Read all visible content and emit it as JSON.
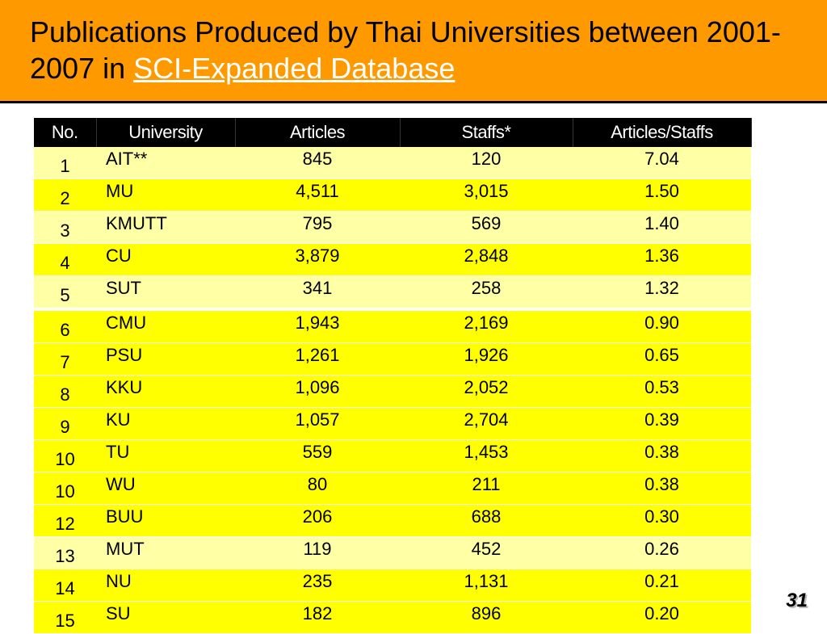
{
  "slide": {
    "title_main": "Publications Produced by Thai Universities between 2001-2007 in ",
    "title_link": "SCI-Expanded Database",
    "page_number": "31"
  },
  "table": {
    "headers": [
      "No.",
      "University",
      "Articles",
      "Staffs*",
      "Articles/Staffs"
    ],
    "rows": [
      {
        "no": "1",
        "university": "AIT**",
        "articles": "845",
        "staffs": "120",
        "ratio": "7.04"
      },
      {
        "no": "2",
        "university": "MU",
        "articles": "4,511",
        "staffs": "3,015",
        "ratio": "1.50"
      },
      {
        "no": "3",
        "university": "KMUTT",
        "articles": "795",
        "staffs": "569",
        "ratio": "1.40"
      },
      {
        "no": "4",
        "university": "CU",
        "articles": "3,879",
        "staffs": "2,848",
        "ratio": "1.36"
      },
      {
        "no": "5",
        "university": "SUT",
        "articles": "341",
        "staffs": "258",
        "ratio": "1.32"
      },
      {
        "no": "6",
        "university": "CMU",
        "articles": "1,943",
        "staffs": "2,169",
        "ratio": "0.90"
      },
      {
        "no": "7",
        "university": "PSU",
        "articles": "1,261",
        "staffs": "1,926",
        "ratio": "0.65"
      },
      {
        "no": "8",
        "university": "KKU",
        "articles": "1,096",
        "staffs": "2,052",
        "ratio": "0.53"
      },
      {
        "no": "9",
        "university": "KU",
        "articles": "1,057",
        "staffs": "2,704",
        "ratio": "0.39"
      },
      {
        "no": "10",
        "university": "TU",
        "articles": "559",
        "staffs": "1,453",
        "ratio": "0.38"
      },
      {
        "no": "10",
        "university": "WU",
        "articles": "80",
        "staffs": "211",
        "ratio": "0.38"
      },
      {
        "no": "12",
        "university": "BUU",
        "articles": "206",
        "staffs": "688",
        "ratio": "0.30"
      },
      {
        "no": "13",
        "university": "MUT",
        "articles": "119",
        "staffs": "452",
        "ratio": "0.26"
      },
      {
        "no": "14",
        "university": "NU",
        "articles": "235",
        "staffs": "1,131",
        "ratio": "0.21"
      },
      {
        "no": "15",
        "university": "SU",
        "articles": "182",
        "staffs": "896",
        "ratio": "0.20"
      }
    ]
  },
  "colors": {
    "banner": "#ff9900",
    "row_light": "#ffffa6",
    "row_bright": "#ffff00",
    "header": "#000000"
  }
}
